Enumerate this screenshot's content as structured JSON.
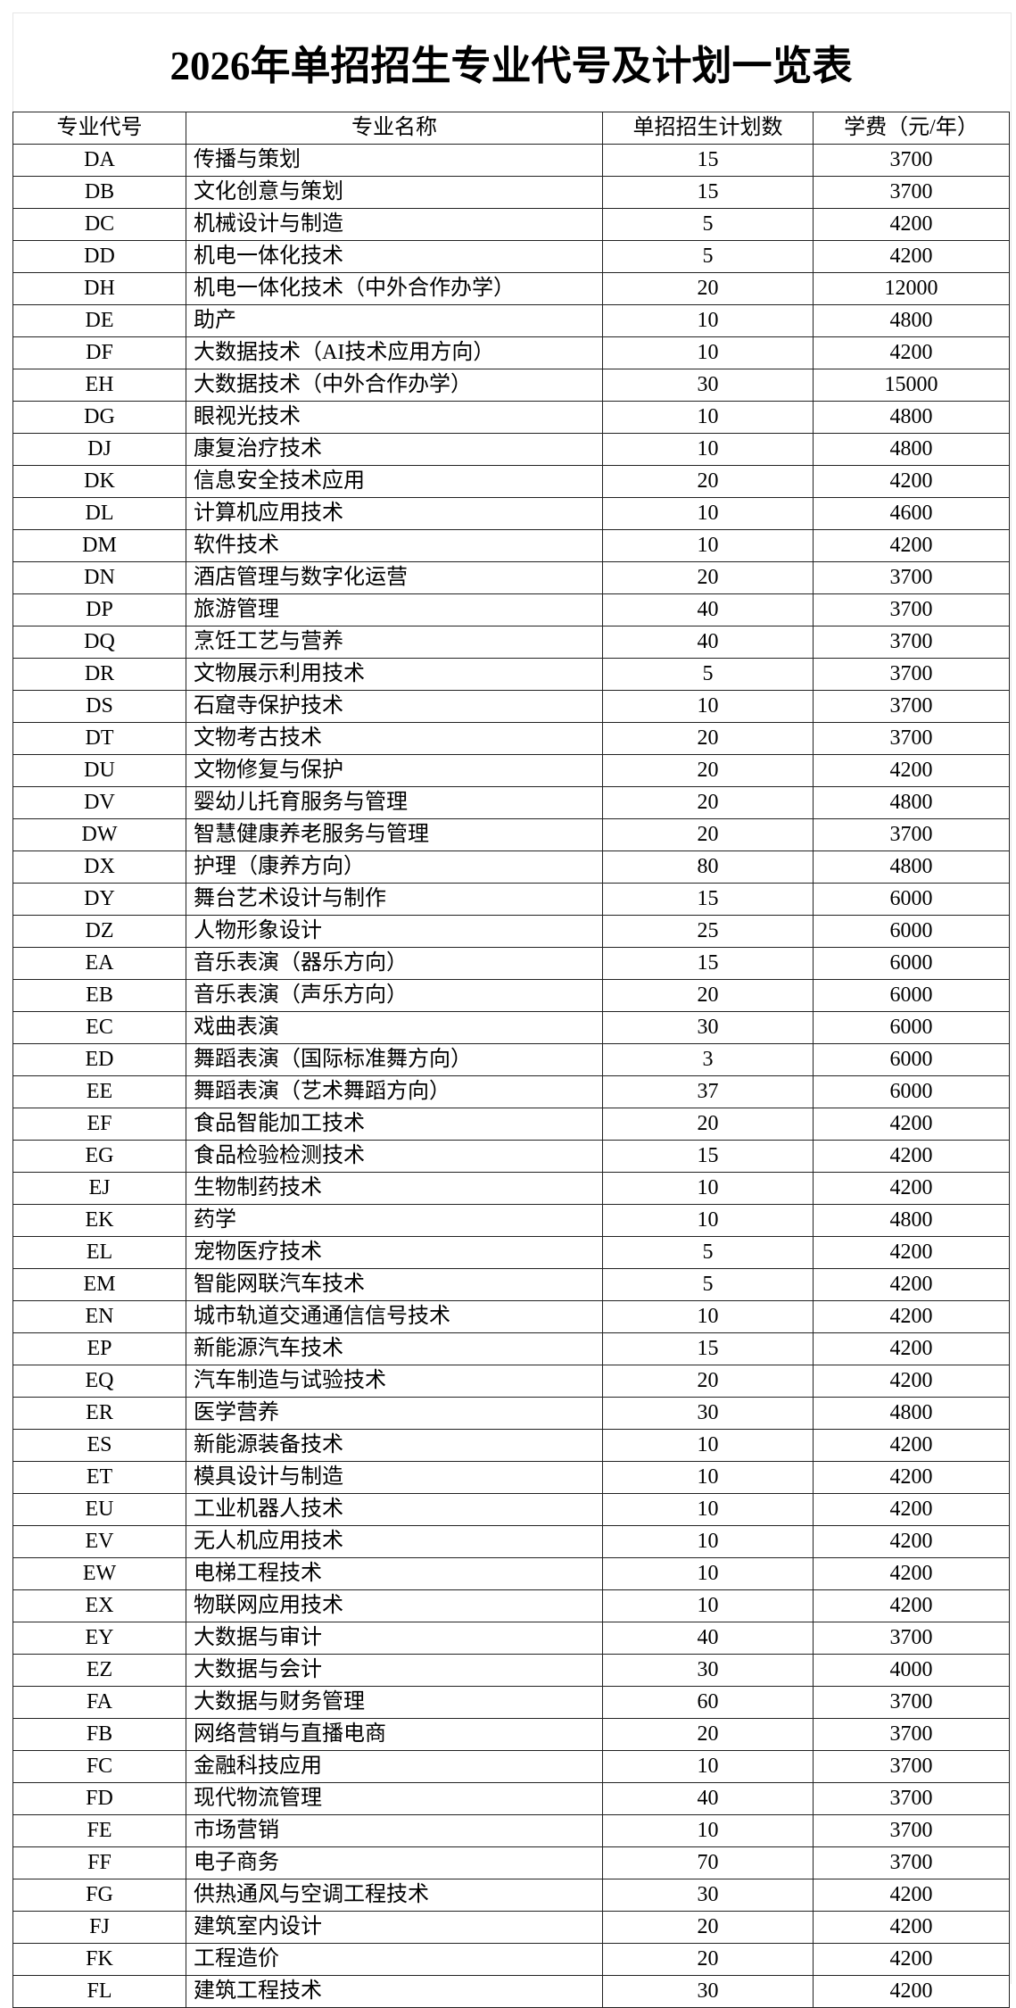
{
  "title": "2026年单招招生专业代号及计划一览表",
  "headers": [
    "专业代号",
    "专业名称",
    "单招招生计划数",
    "学费（元/年）"
  ],
  "rows": [
    [
      "DA",
      "传播与策划",
      "15",
      "3700"
    ],
    [
      "DB",
      "文化创意与策划",
      "15",
      "3700"
    ],
    [
      "DC",
      "机械设计与制造",
      "5",
      "4200"
    ],
    [
      "DD",
      "机电一体化技术",
      "5",
      "4200"
    ],
    [
      "DH",
      "机电一体化技术（中外合作办学）",
      "20",
      "12000"
    ],
    [
      "DE",
      "助产",
      "10",
      "4800"
    ],
    [
      "DF",
      "大数据技术（AI技术应用方向）",
      "10",
      "4200"
    ],
    [
      "EH",
      "大数据技术（中外合作办学）",
      "30",
      "15000"
    ],
    [
      "DG",
      "眼视光技术",
      "10",
      "4800"
    ],
    [
      "DJ",
      "康复治疗技术",
      "10",
      "4800"
    ],
    [
      "DK",
      "信息安全技术应用",
      "20",
      "4200"
    ],
    [
      "DL",
      "计算机应用技术",
      "10",
      "4600"
    ],
    [
      "DM",
      "软件技术",
      "10",
      "4200"
    ],
    [
      "DN",
      "酒店管理与数字化运营",
      "20",
      "3700"
    ],
    [
      "DP",
      "旅游管理",
      "40",
      "3700"
    ],
    [
      "DQ",
      "烹饪工艺与营养",
      "40",
      "3700"
    ],
    [
      "DR",
      "文物展示利用技术",
      "5",
      "3700"
    ],
    [
      "DS",
      "石窟寺保护技术",
      "10",
      "3700"
    ],
    [
      "DT",
      "文物考古技术",
      "20",
      "3700"
    ],
    [
      "DU",
      "文物修复与保护",
      "20",
      "4200"
    ],
    [
      "DV",
      "婴幼儿托育服务与管理",
      "20",
      "4800"
    ],
    [
      "DW",
      "智慧健康养老服务与管理",
      "20",
      "3700"
    ],
    [
      "DX",
      "护理（康养方向）",
      "80",
      "4800"
    ],
    [
      "DY",
      "舞台艺术设计与制作",
      "15",
      "6000"
    ],
    [
      "DZ",
      "人物形象设计",
      "25",
      "6000"
    ],
    [
      "EA",
      "音乐表演（器乐方向）",
      "15",
      "6000"
    ],
    [
      "EB",
      "音乐表演（声乐方向）",
      "20",
      "6000"
    ],
    [
      "EC",
      "戏曲表演",
      "30",
      "6000"
    ],
    [
      "ED",
      "舞蹈表演（国际标准舞方向）",
      "3",
      "6000"
    ],
    [
      "EE",
      "舞蹈表演（艺术舞蹈方向）",
      "37",
      "6000"
    ],
    [
      "EF",
      "食品智能加工技术",
      "20",
      "4200"
    ],
    [
      "EG",
      "食品检验检测技术",
      "15",
      "4200"
    ],
    [
      "EJ",
      "生物制药技术",
      "10",
      "4200"
    ],
    [
      "EK",
      "药学",
      "10",
      "4800"
    ],
    [
      "EL",
      "宠物医疗技术",
      "5",
      "4200"
    ],
    [
      "EM",
      "智能网联汽车技术",
      "5",
      "4200"
    ],
    [
      "EN",
      "城市轨道交通通信信号技术",
      "10",
      "4200"
    ],
    [
      "EP",
      "新能源汽车技术",
      "15",
      "4200"
    ],
    [
      "EQ",
      "汽车制造与试验技术",
      "20",
      "4200"
    ],
    [
      "ER",
      "医学营养",
      "30",
      "4800"
    ],
    [
      "ES",
      "新能源装备技术",
      "10",
      "4200"
    ],
    [
      "ET",
      "模具设计与制造",
      "10",
      "4200"
    ],
    [
      "EU",
      "工业机器人技术",
      "10",
      "4200"
    ],
    [
      "EV",
      "无人机应用技术",
      "10",
      "4200"
    ],
    [
      "EW",
      "电梯工程技术",
      "10",
      "4200"
    ],
    [
      "EX",
      "物联网应用技术",
      "10",
      "4200"
    ],
    [
      "EY",
      "大数据与审计",
      "40",
      "3700"
    ],
    [
      "EZ",
      "大数据与会计",
      "30",
      "4000"
    ],
    [
      "FA",
      "大数据与财务管理",
      "60",
      "3700"
    ],
    [
      "FB",
      "网络营销与直播电商",
      "20",
      "3700"
    ],
    [
      "FC",
      "金融科技应用",
      "10",
      "3700"
    ],
    [
      "FD",
      "现代物流管理",
      "40",
      "3700"
    ],
    [
      "FE",
      "市场营销",
      "10",
      "3700"
    ],
    [
      "FF",
      "电子商务",
      "70",
      "3700"
    ],
    [
      "FG",
      "供热通风与空调工程技术",
      "30",
      "4200"
    ],
    [
      "FJ",
      "建筑室内设计",
      "20",
      "4200"
    ],
    [
      "FK",
      "工程造价",
      "20",
      "4200"
    ],
    [
      "FL",
      "建筑工程技术",
      "30",
      "4200"
    ]
  ]
}
